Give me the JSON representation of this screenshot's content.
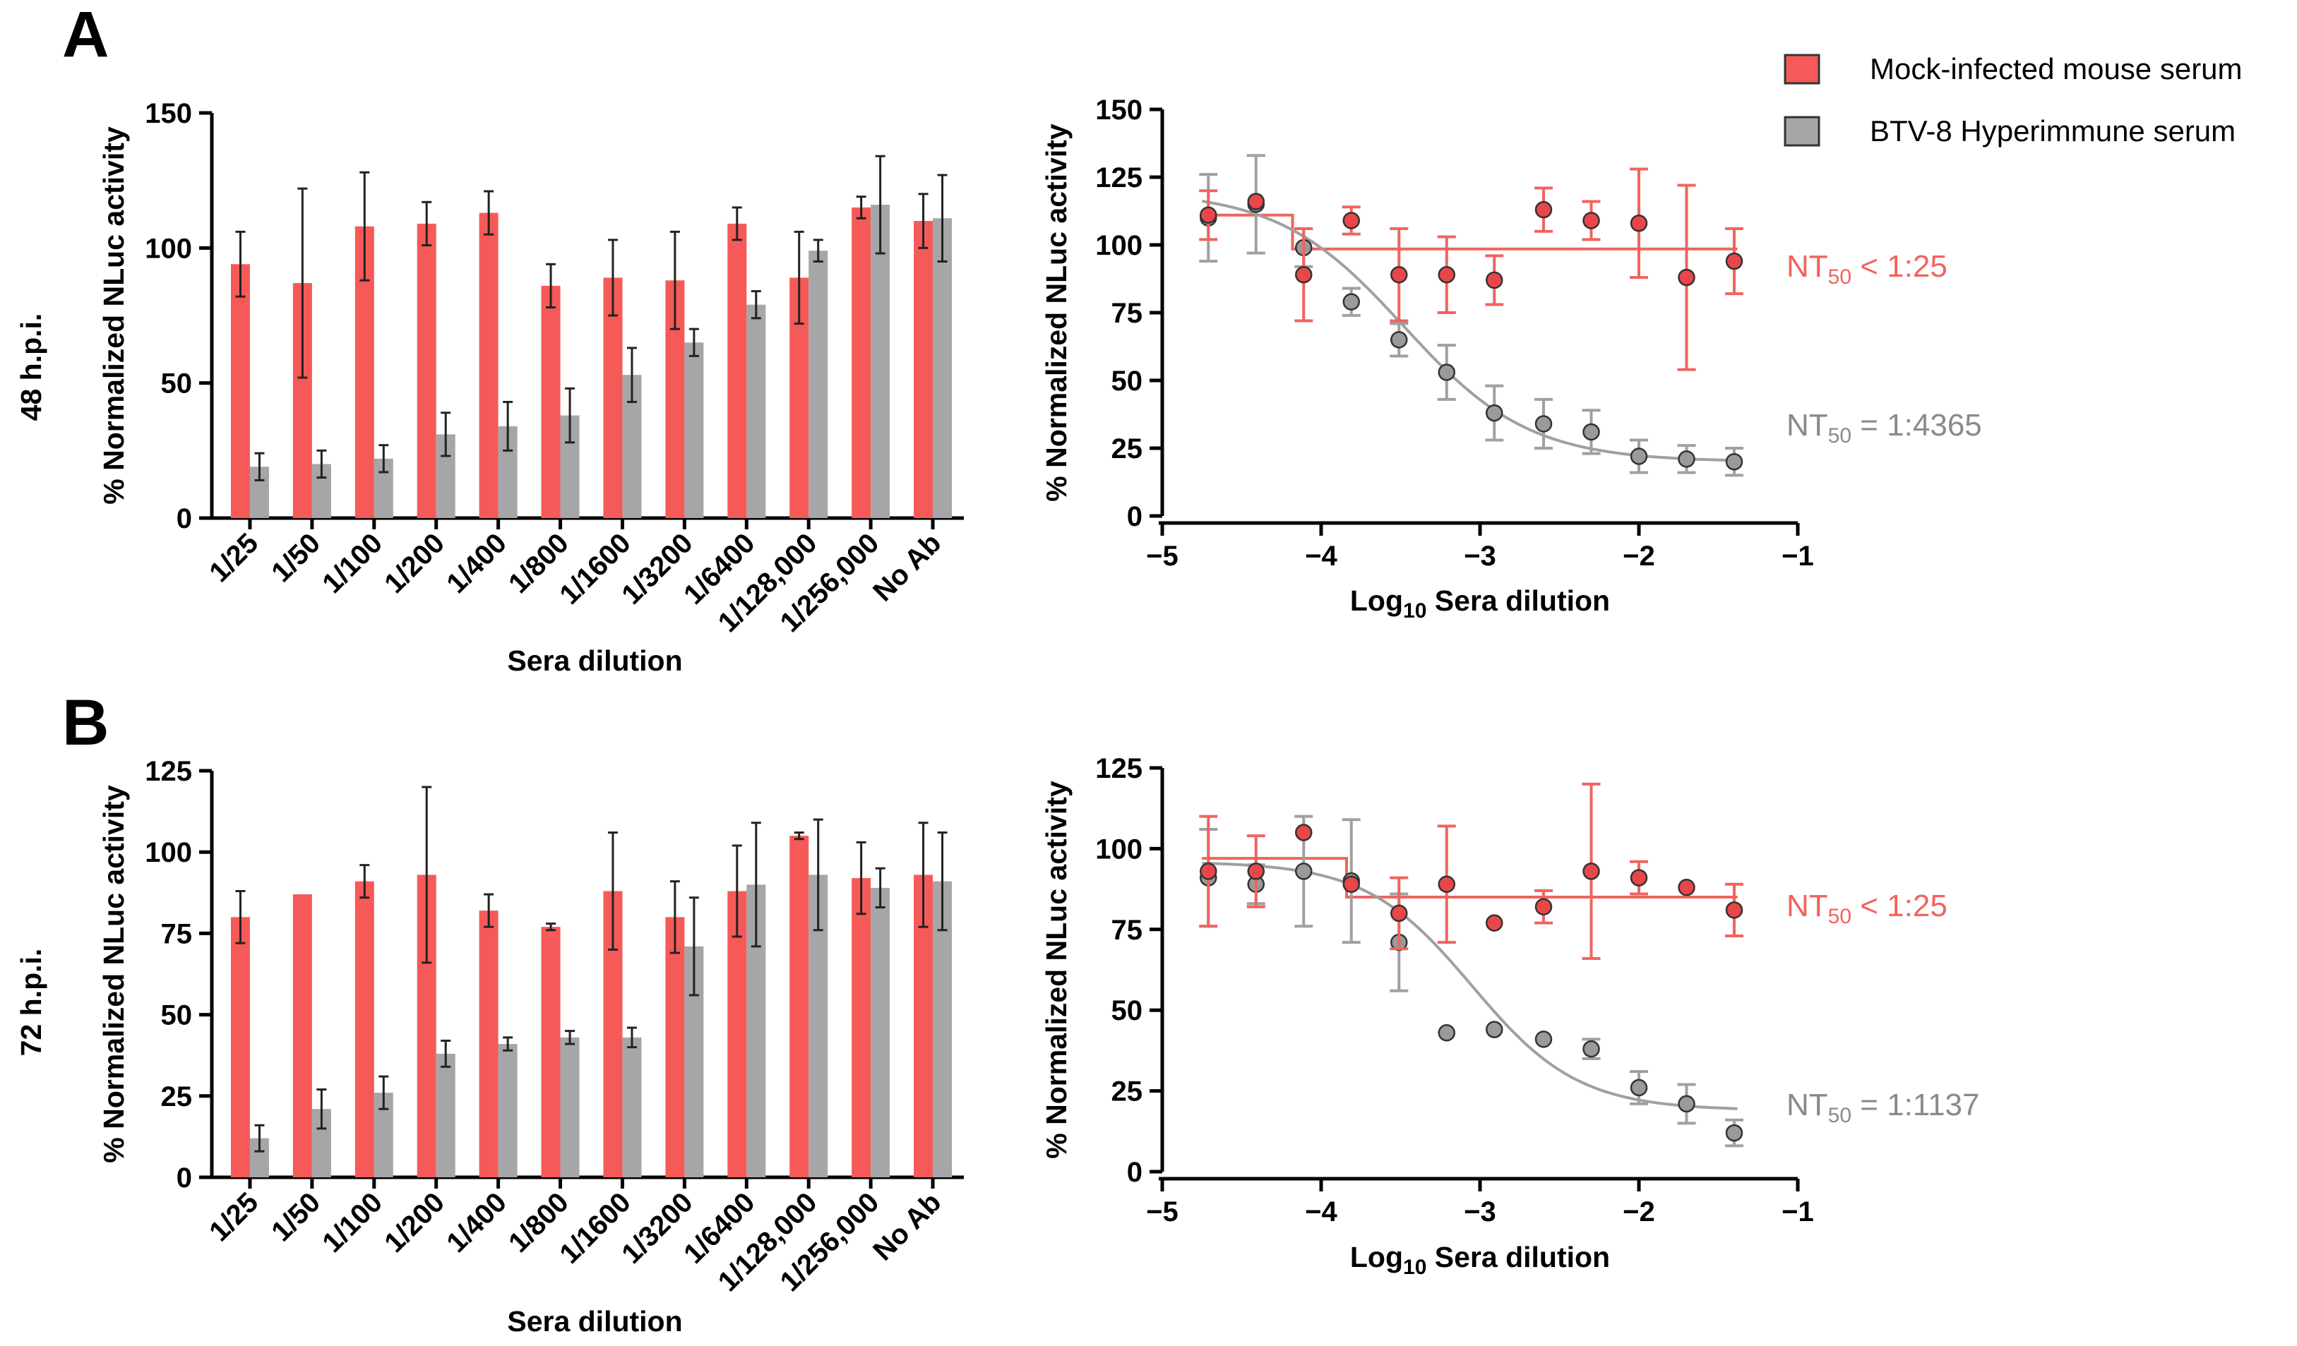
{
  "panels": [
    {
      "letter": "A",
      "row_label": "48 h.p.i."
    },
    {
      "letter": "B",
      "row_label": "72 h.p.i."
    }
  ],
  "legend": {
    "items": [
      {
        "label": "Mock-infected mouse serum",
        "color": "#f65a58"
      },
      {
        "label": "BTV-8 Hyperimmune serum",
        "color": "#a6a6a8"
      }
    ]
  },
  "colors": {
    "red_bar": "#f65a58",
    "gray_bar": "#a6a6a8",
    "red_line": "#f0645f",
    "gray_line": "#a0a0a0",
    "red_point": "#e8474a",
    "gray_point": "#9a9a9a"
  },
  "chart_data": [
    {
      "id": "A-bar",
      "type": "bar",
      "panel": "A",
      "xlabel": "Sera dilution",
      "ylabel": "% Normalized NLuc activity",
      "ylim": [
        0,
        150
      ],
      "yticks": [
        0,
        50,
        100,
        150
      ],
      "categories": [
        "1/25",
        "1/50",
        "1/100",
        "1/200",
        "1/400",
        "1/800",
        "1/1600",
        "1/3200",
        "1/6400",
        "1/128,000",
        "1/256,000",
        "No Ab"
      ],
      "series": [
        {
          "name": "Mock-infected mouse serum",
          "values": [
            94,
            87,
            108,
            109,
            113,
            86,
            89,
            88,
            109,
            89,
            115,
            110
          ],
          "errors": [
            12,
            35,
            20,
            8,
            8,
            8,
            14,
            18,
            6,
            17,
            4,
            10
          ]
        },
        {
          "name": "BTV-8 Hyperimmune serum",
          "values": [
            19,
            20,
            22,
            31,
            34,
            38,
            53,
            65,
            79,
            99,
            116,
            111
          ],
          "errors": [
            5,
            5,
            5,
            8,
            9,
            10,
            10,
            5,
            5,
            4,
            18,
            16
          ]
        }
      ]
    },
    {
      "id": "A-curve",
      "type": "scatter",
      "panel": "A",
      "xlabel_main": "Log",
      "xlabel_sub": "10",
      "xlabel_rest": " Sera dilution",
      "ylabel": "% Normalized NLuc activity",
      "xlim": [
        -5,
        -1
      ],
      "ylim": [
        0,
        150
      ],
      "xticks": [
        -5,
        -4,
        -3,
        -2,
        -1
      ],
      "xtick_labels": [
        "−5",
        "−4",
        "−3",
        "−2",
        "−1"
      ],
      "yticks": [
        0,
        25,
        50,
        75,
        100,
        125,
        150
      ],
      "series": [
        {
          "name": "Mock-infected mouse serum",
          "x": [
            -4.71,
            -4.41,
            -4.11,
            -3.81,
            -3.51,
            -3.21,
            -2.91,
            -2.6,
            -2.3,
            -2.0,
            -1.7,
            -1.4
          ],
          "y": [
            111,
            116,
            89,
            109,
            89,
            89,
            87,
            113,
            109,
            108,
            88,
            94
          ],
          "errors": [
            9,
            0,
            17,
            5,
            17,
            14,
            9,
            8,
            7,
            20,
            34,
            12
          ],
          "fit": {
            "kind": "step",
            "x": [
              -4.75,
              -4.18,
              -4.18,
              -1.38
            ],
            "y": [
              111,
              111,
              98.5,
              98.5
            ]
          }
        },
        {
          "name": "BTV-8 Hyperimmune serum",
          "x": [
            -4.71,
            -4.41,
            -4.11,
            -3.81,
            -3.51,
            -3.21,
            -2.91,
            -2.6,
            -2.3,
            -2.0,
            -1.7,
            -1.4
          ],
          "y": [
            110,
            115,
            99,
            79,
            65,
            53,
            38,
            34,
            31,
            22,
            21,
            20
          ],
          "errors": [
            16,
            18,
            7,
            5,
            6,
            10,
            10,
            9,
            8,
            6,
            5,
            5
          ],
          "fit": {
            "kind": "sigmoid",
            "bottom": 20,
            "top": 120,
            "logEC50": -3.48,
            "hill": 1.1,
            "x_range": [
              -4.75,
              -1.38
            ]
          }
        }
      ],
      "annotations": [
        {
          "prefix": "NT",
          "sub": "50",
          "suffix": " < 1:25",
          "color": "red"
        },
        {
          "prefix": "NT",
          "sub": "50",
          "suffix": " = 1:4365",
          "color": "gray"
        }
      ]
    },
    {
      "id": "B-bar",
      "type": "bar",
      "panel": "B",
      "xlabel": "Sera dilution",
      "ylabel": "% Normalized NLuc activity",
      "ylim": [
        0,
        125
      ],
      "yticks": [
        0,
        25,
        50,
        75,
        100,
        125
      ],
      "categories": [
        "1/25",
        "1/50",
        "1/100",
        "1/200",
        "1/400",
        "1/800",
        "1/1600",
        "1/3200",
        "1/6400",
        "1/128,000",
        "1/256,000",
        "No Ab"
      ],
      "series": [
        {
          "name": "Mock-infected mouse serum",
          "values": [
            80,
            87,
            91,
            93,
            82,
            77,
            88,
            80,
            88,
            105,
            92,
            93
          ],
          "errors": [
            8,
            0,
            5,
            27,
            5,
            1,
            18,
            11,
            14,
            1,
            11,
            16
          ]
        },
        {
          "name": "BTV-8 Hyperimmune serum",
          "values": [
            12,
            21,
            26,
            38,
            41,
            43,
            43,
            71,
            90,
            93,
            89,
            91
          ],
          "errors": [
            4,
            6,
            5,
            4,
            2,
            2,
            3,
            15,
            19,
            17,
            6,
            15
          ]
        }
      ]
    },
    {
      "id": "B-curve",
      "type": "scatter",
      "panel": "B",
      "xlabel_main": "Log",
      "xlabel_sub": "10",
      "xlabel_rest": " Sera dilution",
      "ylabel": "% Normalized NLuc activity",
      "xlim": [
        -5,
        -1
      ],
      "ylim": [
        0,
        125
      ],
      "xticks": [
        -5,
        -4,
        -3,
        -2,
        -1
      ],
      "xtick_labels": [
        "−5",
        "−4",
        "−3",
        "−2",
        "−1"
      ],
      "yticks": [
        0,
        25,
        50,
        75,
        100,
        125
      ],
      "series": [
        {
          "name": "Mock-infected mouse serum",
          "x": [
            -4.71,
            -4.41,
            -4.11,
            -3.81,
            -3.51,
            -3.21,
            -2.91,
            -2.6,
            -2.3,
            -2.0,
            -1.7,
            -1.4
          ],
          "y": [
            93,
            93,
            105,
            89,
            80,
            89,
            77,
            82,
            93,
            91,
            88,
            81
          ],
          "errors": [
            17,
            11,
            0,
            0,
            11,
            18,
            0,
            5,
            27,
            5,
            0,
            8
          ],
          "fit": {
            "kind": "step",
            "x": [
              -4.75,
              -3.84,
              -3.84,
              -1.38
            ],
            "y": [
              97,
              97,
              85,
              85
            ]
          }
        },
        {
          "name": "BTV-8 Hyperimmune serum",
          "x": [
            -4.71,
            -4.41,
            -4.11,
            -3.81,
            -3.51,
            -3.21,
            -2.91,
            -2.6,
            -2.3,
            -2.0,
            -1.7,
            -1.4
          ],
          "y": [
            91,
            89,
            93,
            90,
            71,
            43,
            44,
            41,
            38,
            26,
            21,
            12
          ],
          "errors": [
            15,
            6,
            17,
            19,
            15,
            0,
            0,
            0,
            3,
            5,
            6,
            4
          ],
          "fit": {
            "kind": "sigmoid",
            "bottom": 19,
            "top": 96,
            "logEC50": -3.05,
            "hill": 1.3,
            "x_range": [
              -4.75,
              -1.38
            ]
          }
        }
      ],
      "annotations": [
        {
          "prefix": "NT",
          "sub": "50",
          "suffix": " < 1:25",
          "color": "red"
        },
        {
          "prefix": "NT",
          "sub": "50",
          "suffix": " = 1:1137",
          "color": "gray"
        }
      ]
    }
  ]
}
